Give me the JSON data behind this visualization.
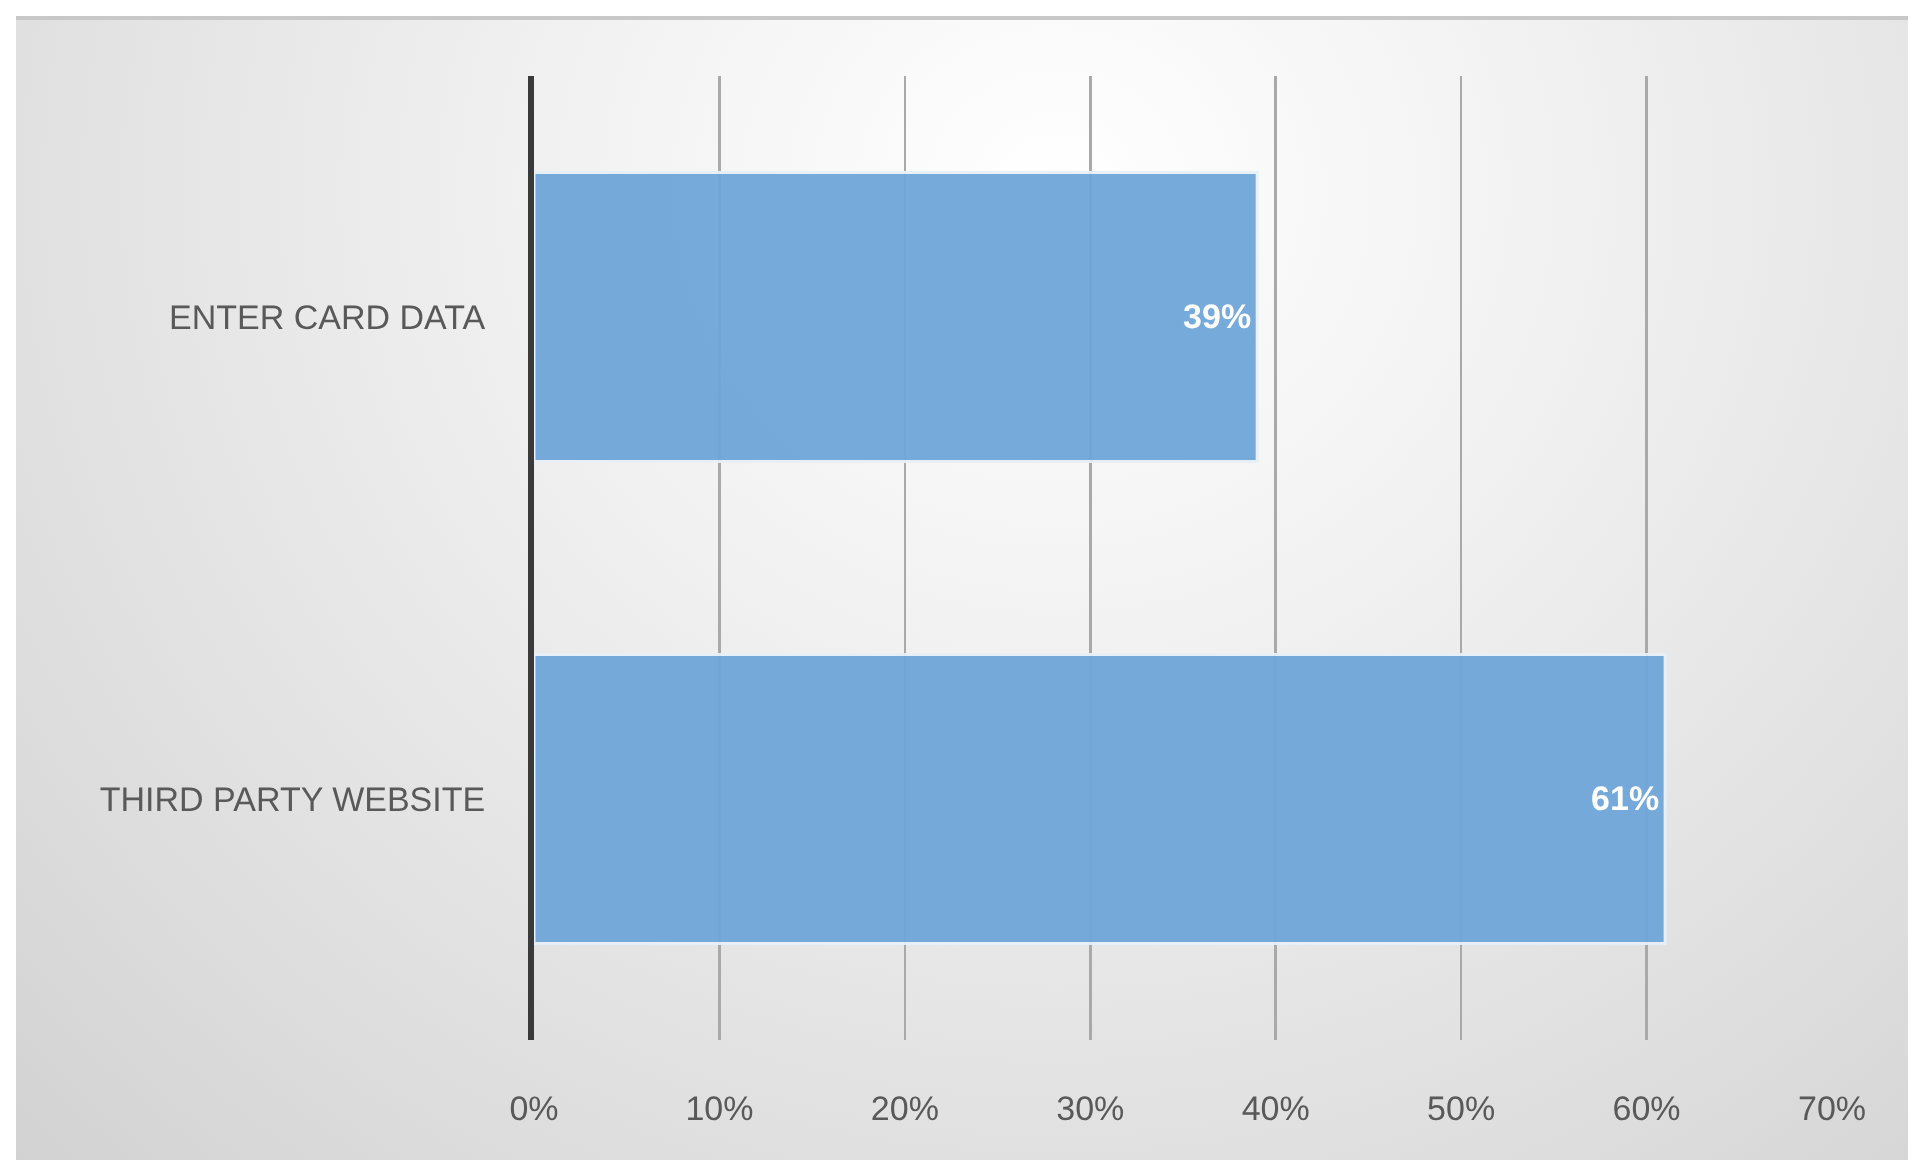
{
  "chart_data": {
    "type": "bar",
    "orientation": "horizontal",
    "categories": [
      "ENTER CARD DATA",
      "THIRD PARTY WEBSITE"
    ],
    "values": [
      39,
      61
    ],
    "value_labels": [
      "39%",
      "61%"
    ],
    "color": "#6fa6d9",
    "xlim": [
      0,
      70
    ],
    "xticks": [
      {
        "value": 0,
        "label": "0%"
      },
      {
        "value": 10,
        "label": "10%"
      },
      {
        "value": 20,
        "label": "20%"
      },
      {
        "value": 30,
        "label": "30%"
      },
      {
        "value": 40,
        "label": "40%"
      },
      {
        "value": 50,
        "label": "50%"
      },
      {
        "value": 60,
        "label": "60%"
      },
      {
        "value": 70,
        "label": "70%"
      }
    ],
    "grid": "x"
  }
}
